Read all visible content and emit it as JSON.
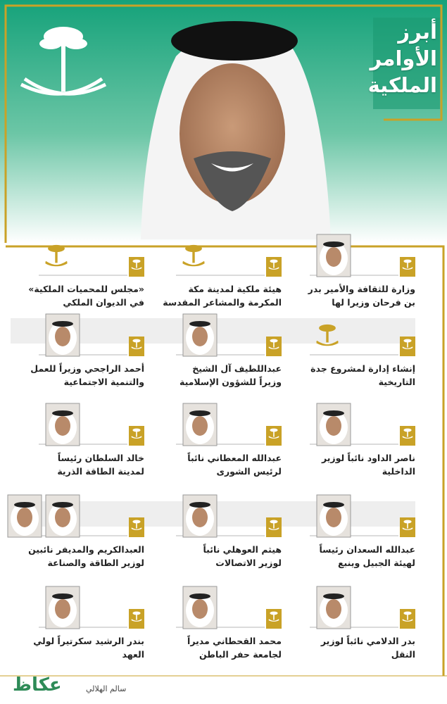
{
  "header": {
    "title": [
      "أبرز",
      "الأوامر",
      "الملكية"
    ]
  },
  "items": [
    {
      "lines": [
        "وزارة للثقافة والأمير بدر",
        "بن فرحان وزيرا لها"
      ]
    },
    {
      "lines": [
        "هيئة ملكية لمدينة مكة",
        "المكرمة والمشاعر المقدسة"
      ]
    },
    {
      "lines": [
        "«مجلس للمحميات الملكية»",
        "في الديوان الملكي"
      ]
    },
    {
      "lines": [
        "إنشاء إدارة لمشروع جدة",
        "التاريخية"
      ]
    },
    {
      "lines": [
        "عبداللطيف آل الشيخ",
        "وزيراً للشؤون الإسلامية"
      ]
    },
    {
      "lines": [
        "أحمد الراجحي وزيراً للعمل",
        "والتنمية الاجتماعية"
      ]
    },
    {
      "lines": [
        "ناصر الداود نائباً لوزير",
        "الداخلية"
      ]
    },
    {
      "lines": [
        "عبدالله المعطاني نائباً",
        "لرئيس الشورى"
      ]
    },
    {
      "lines": [
        "خالد السلطان رئيساً",
        "لمدينة الطاقة الذرية"
      ]
    },
    {
      "lines": [
        "عبدالله السعدان رئيساً",
        "لهيئة الجبيل وينبع"
      ]
    },
    {
      "lines": [
        "هيثم العوهلي نائباً",
        "لوزير الاتصالات"
      ]
    },
    {
      "lines": [
        "العبدالكريم والمديفر نائبين",
        "لوزير الطاقة والصناعة"
      ]
    },
    {
      "lines": [
        "بدر الدلامي نائباً لوزير",
        "النقل"
      ]
    },
    {
      "lines": [
        "محمد القحطاني مديراً",
        "لجامعة حفر الباطن"
      ]
    },
    {
      "lines": [
        "بندر الرشيد سكرتيراً لولي",
        "العهد"
      ]
    }
  ],
  "footer": {
    "credit": "سالم الهلالي",
    "logo": "عكاظ"
  }
}
